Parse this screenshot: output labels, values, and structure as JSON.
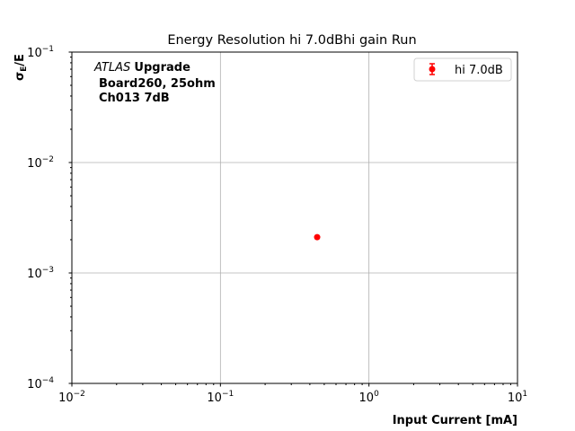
{
  "chart_data": {
    "type": "scatter",
    "title": "Energy Resolution hi 7.0dBhi gain Run",
    "xlabel": "Input Current [mA]",
    "ylabel_main": "σ",
    "ylabel_sub": "E",
    "ylabel_tail": "/E",
    "xscale": "log",
    "yscale": "log",
    "xlim": [
      0.01,
      10
    ],
    "ylim": [
      0.0001,
      0.1
    ],
    "grid": true,
    "legend_position": "top-right",
    "x_ticks": [
      {
        "base": "10",
        "exp": "−2",
        "value": 0.01
      },
      {
        "base": "10",
        "exp": "−1",
        "value": 0.1
      },
      {
        "base": "10",
        "exp": "0",
        "value": 1
      },
      {
        "base": "10",
        "exp": "1",
        "value": 10
      }
    ],
    "y_ticks": [
      {
        "base": "10",
        "exp": "−4",
        "value": 0.0001
      },
      {
        "base": "10",
        "exp": "−3",
        "value": 0.001
      },
      {
        "base": "10",
        "exp": "−2",
        "value": 0.01
      },
      {
        "base": "10",
        "exp": "−1",
        "value": 0.1
      }
    ],
    "annotation": {
      "italic": "ATLAS",
      "bold": "Upgrade",
      "line2": "Board260, 25ohm",
      "line3": "Ch013 7dB"
    },
    "series": [
      {
        "name": "hi 7.0dB",
        "color": "#ff0000",
        "x": [
          0.448
        ],
        "y": [
          0.00211
        ],
        "yerr": [
          2e-05
        ]
      }
    ]
  }
}
